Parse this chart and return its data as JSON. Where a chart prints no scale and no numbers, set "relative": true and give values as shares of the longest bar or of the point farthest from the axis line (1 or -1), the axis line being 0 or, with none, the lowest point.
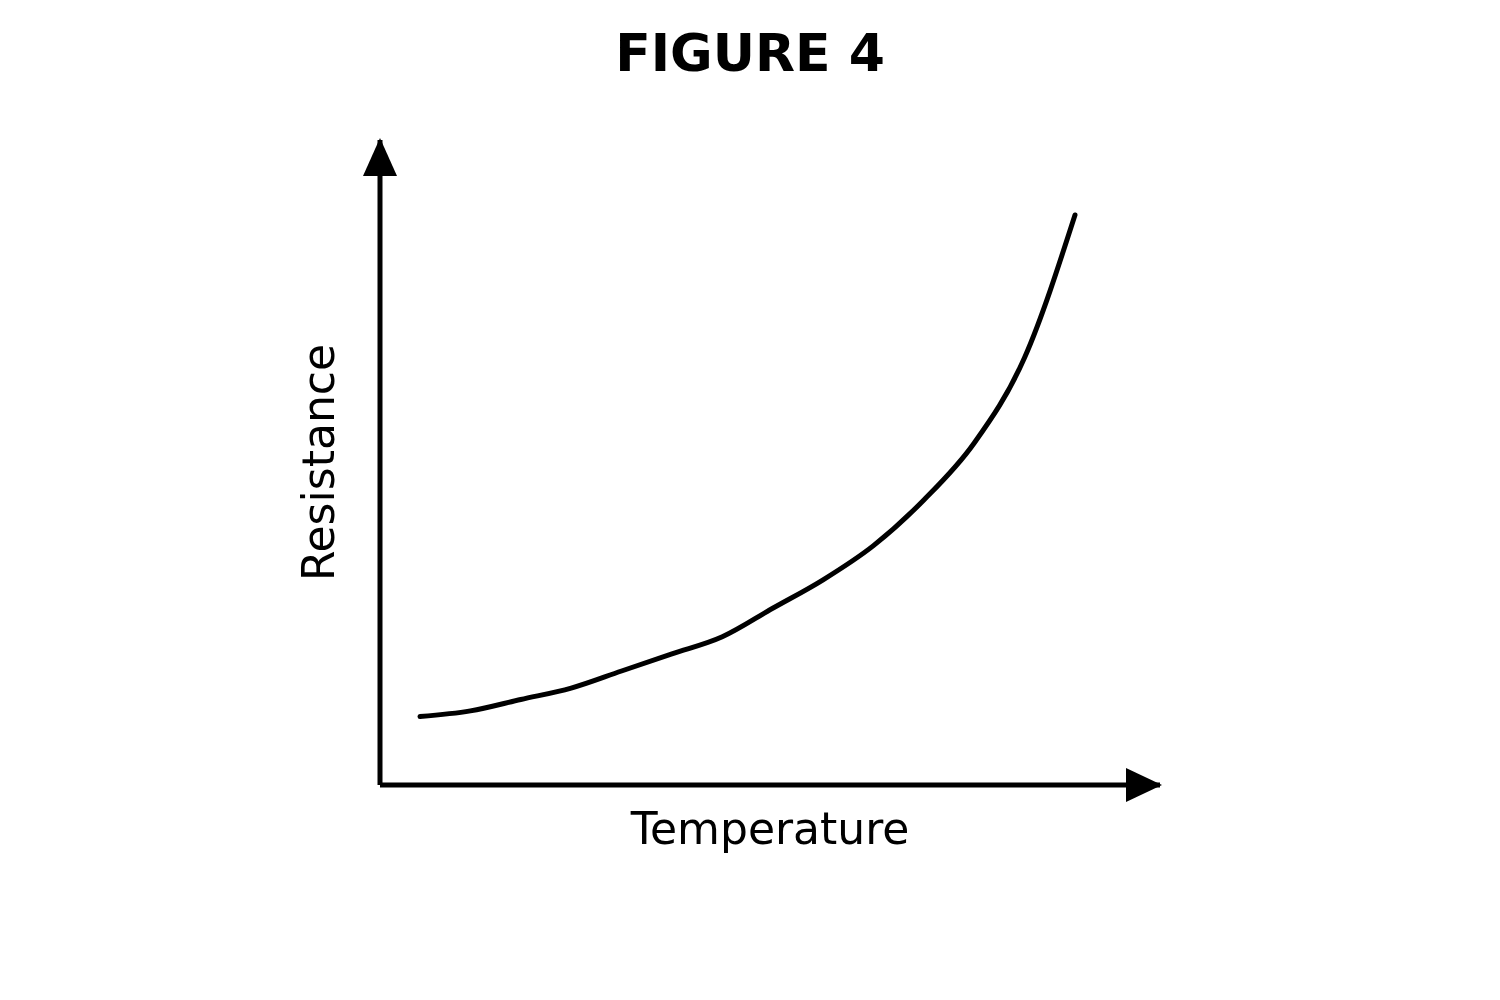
{
  "chart_data": {
    "type": "line",
    "title": "FIGURE 4",
    "xlabel": "Temperature",
    "ylabel": "Resistance",
    "relative": true,
    "marker": "none",
    "line_style": "solid",
    "color": "#000000",
    "categories": [
      null,
      null,
      null,
      null,
      null,
      null,
      null,
      null,
      null,
      null,
      null,
      null,
      null,
      null
    ],
    "values": [
      0.12,
      0.13,
      0.15,
      0.17,
      0.2,
      0.23,
      0.26,
      0.31,
      0.36,
      0.42,
      0.5,
      0.6,
      0.75,
      1
    ]
  }
}
